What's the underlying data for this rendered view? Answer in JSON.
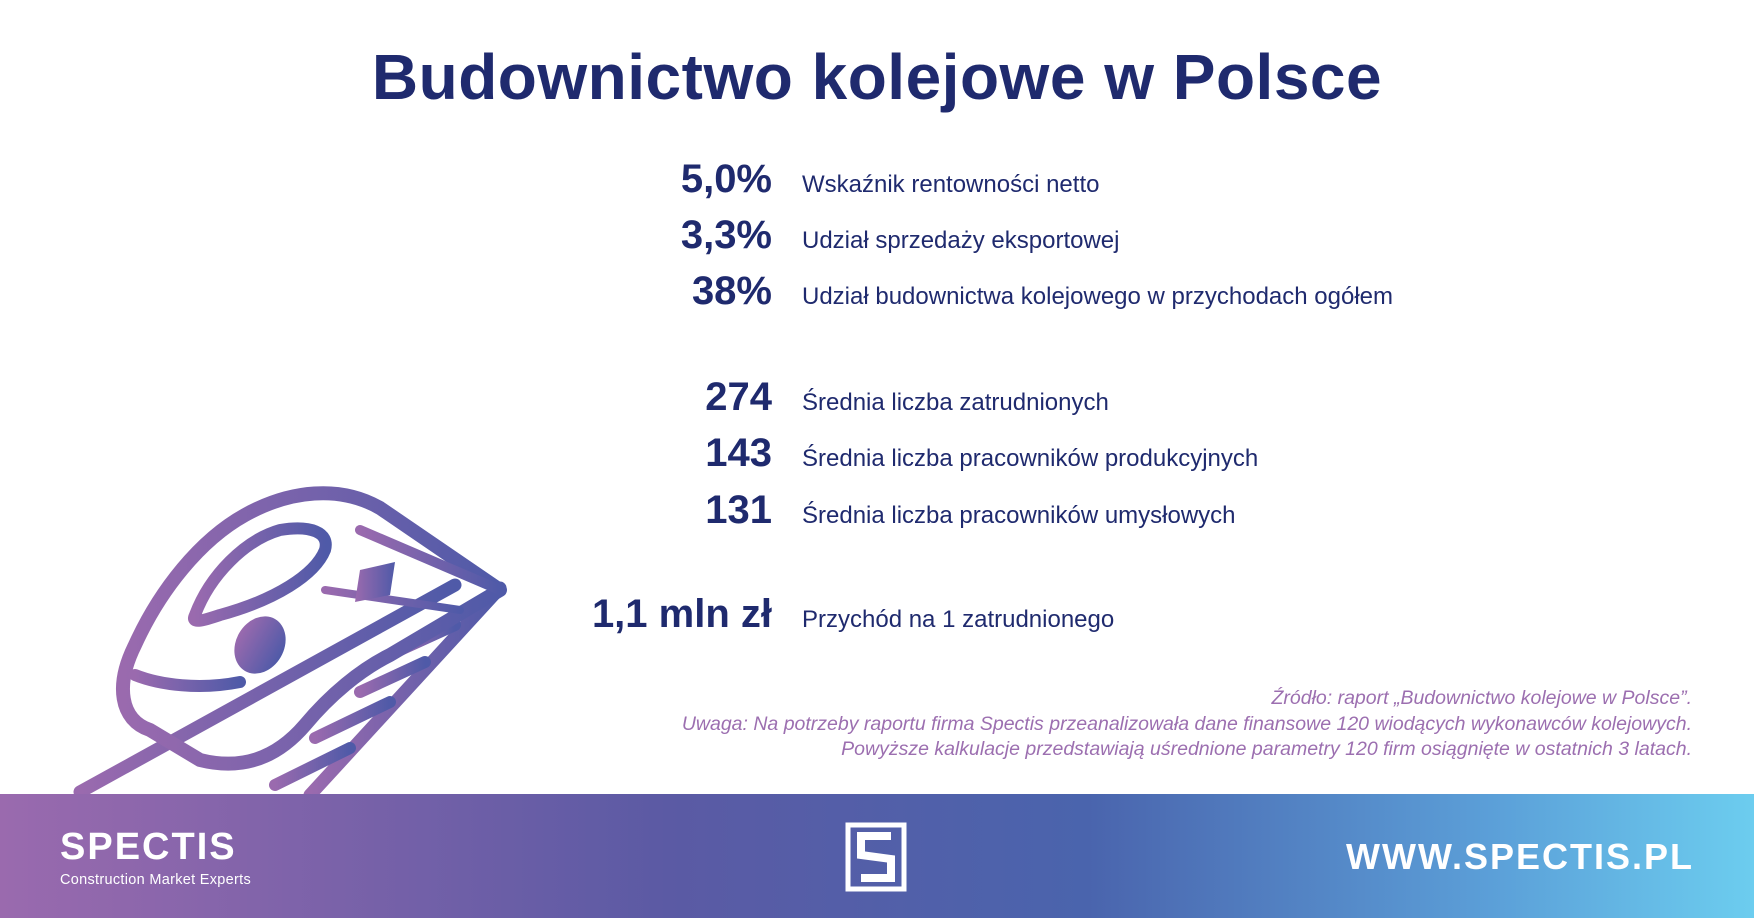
{
  "title": "Budownictwo kolejowe w Polsce",
  "stats": [
    {
      "value": "5,0%",
      "label": "Wskaźnik rentowności netto"
    },
    {
      "value": "3,3%",
      "label": "Udział sprzedaży eksportowej"
    },
    {
      "value": "38%",
      "label": "Udział budownictwa kolejowego w przychodach ogółem"
    },
    {
      "value": "274",
      "label": "Średnia liczba zatrudnionych"
    },
    {
      "value": "143",
      "label": "Średnia liczba pracowników produkcyjnych"
    },
    {
      "value": "131",
      "label": "Średnia liczba pracowników umysłowych"
    },
    {
      "value": "1,1 mln zł",
      "label": "Przychód na 1 zatrudnionego"
    }
  ],
  "notes": [
    "Źródło: raport „Budownictwo kolejowe w Polsce”.",
    "Uwaga: Na potrzeby raportu firma Spectis przeanalizowała dane finansowe 120 wiodących wykonawców kolejowych.",
    "Powyższe kalkulacje przedstawiają uśrednione parametry 120 firm osiągnięte w ostatnich 3 latach."
  ],
  "footer": {
    "brand_name": "SPECTIS",
    "brand_tagline": "Construction Market Experts",
    "url": "WWW.SPECTIS.PL"
  },
  "icons": {
    "illustration": "train-icon",
    "center_logo": "spectis-s-logo-icon"
  },
  "colors": {
    "title": "#1f2a6e",
    "notes": "#9c6fb0",
    "gradient_start": "#9a6aae",
    "gradient_end": "#6ccdef"
  }
}
